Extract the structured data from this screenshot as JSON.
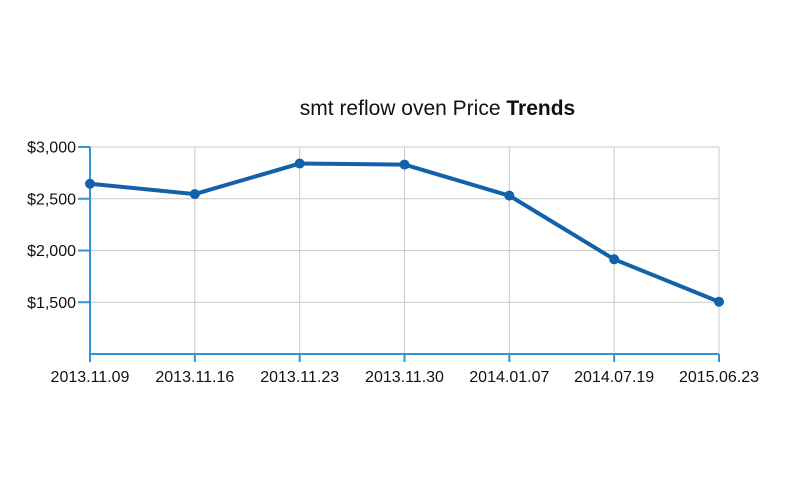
{
  "title": {
    "prefix": "smt reflow oven Price ",
    "bold": "Trends"
  },
  "chart_data": {
    "type": "line",
    "title": "smt reflow oven Price Trends",
    "categories": [
      "2013.11.09",
      "2013.11.16",
      "2013.11.23",
      "2013.11.30",
      "2014.01.07",
      "2014.07.19",
      "2015.06.23"
    ],
    "series": [
      {
        "name": "Price",
        "values": [
          2645,
          2545,
          2840,
          2830,
          2530,
          1915,
          1505
        ]
      }
    ],
    "xlabel": "",
    "ylabel": "",
    "ylim": [
      1000,
      3000
    ],
    "yticks": [
      {
        "value": 3000,
        "label": "$3,000"
      },
      {
        "value": 2500,
        "label": "$2,500"
      },
      {
        "value": 2000,
        "label": "$2,000"
      },
      {
        "value": 1500,
        "label": "$1,500"
      }
    ],
    "grid": true,
    "legend": false,
    "colors": {
      "line": "#1261a9",
      "point": "#1261a9",
      "axis": "#2f96d3",
      "gridline": "#c9c9c9",
      "text": "#111111"
    }
  }
}
